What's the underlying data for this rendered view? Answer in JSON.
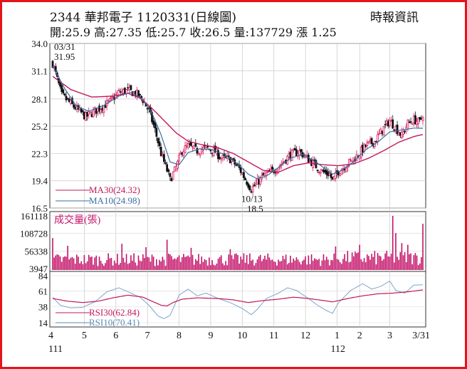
{
  "header": {
    "title": "2344  華邦電子 1120331(日線圖)",
    "source": "時報資訊",
    "quote": "開:25.9 高:27.35 低:25.7 收:26.5 量:137729 漲 1.25"
  },
  "chart_data": [
    {
      "type": "candlestick",
      "panel": "price",
      "y_ticks": [
        "34.0",
        "31.1",
        "28.1",
        "25.2",
        "22.3",
        "19.4",
        "16.5"
      ],
      "ylim": [
        16.5,
        34.0
      ],
      "grid": true,
      "annotations": [
        {
          "label": "03/31",
          "date_index": 0
        },
        {
          "label": "31.95",
          "value": 31.95,
          "date_index": 0
        },
        {
          "label": "10/13",
          "date_index": 132
        },
        {
          "label": "18.5",
          "value": 18.5,
          "date_index": 132
        }
      ],
      "legend": [
        {
          "label": "MA30(24.32)",
          "color": "#c2185b"
        },
        {
          "label": "MA10(24.98)",
          "color": "#3a6fa0"
        }
      ],
      "colors": {
        "up": "#d81b60",
        "down": "#111111",
        "ma30": "#c2185b",
        "ma10": "#3a6fa0"
      },
      "close_path": [
        [
          0,
          31.9
        ],
        [
          6,
          28.5
        ],
        [
          14,
          27.3
        ],
        [
          22,
          26.2
        ],
        [
          30,
          27.0
        ],
        [
          38,
          27.8
        ],
        [
          44,
          28.8
        ],
        [
          50,
          29.0
        ],
        [
          56,
          28.6
        ],
        [
          60,
          28.0
        ],
        [
          64,
          26.8
        ],
        [
          68,
          24.8
        ],
        [
          72,
          22.3
        ],
        [
          76,
          20.5
        ],
        [
          78,
          19.5
        ],
        [
          82,
          20.8
        ],
        [
          86,
          22.6
        ],
        [
          90,
          23.1
        ],
        [
          96,
          22.6
        ],
        [
          102,
          22.9
        ],
        [
          108,
          22.5
        ],
        [
          112,
          21.8
        ],
        [
          118,
          21.7
        ],
        [
          124,
          20.7
        ],
        [
          128,
          19.6
        ],
        [
          132,
          18.5
        ],
        [
          136,
          19.2
        ],
        [
          140,
          19.9
        ],
        [
          146,
          20.4
        ],
        [
          152,
          21.2
        ],
        [
          158,
          22.2
        ],
        [
          164,
          22.5
        ],
        [
          170,
          21.7
        ],
        [
          176,
          20.8
        ],
        [
          180,
          20.3
        ],
        [
          184,
          20.1
        ],
        [
          186,
          19.4
        ],
        [
          190,
          20.4
        ],
        [
          196,
          21.2
        ],
        [
          202,
          22.0
        ],
        [
          208,
          23.1
        ],
        [
          214,
          23.6
        ],
        [
          220,
          25.0
        ],
        [
          224,
          25.8
        ],
        [
          228,
          25.0
        ],
        [
          232,
          24.2
        ],
        [
          236,
          25.5
        ],
        [
          240,
          25.9
        ],
        [
          244,
          25.6
        ],
        [
          246,
          26.5
        ]
      ],
      "ma30_path": [
        [
          0,
          30.5
        ],
        [
          12,
          29.1
        ],
        [
          26,
          28.3
        ],
        [
          40,
          28.4
        ],
        [
          50,
          28.7
        ],
        [
          58,
          28.2
        ],
        [
          66,
          27.1
        ],
        [
          74,
          25.8
        ],
        [
          82,
          24.5
        ],
        [
          90,
          23.6
        ],
        [
          100,
          23.2
        ],
        [
          110,
          22.9
        ],
        [
          120,
          22.3
        ],
        [
          130,
          21.4
        ],
        [
          140,
          20.5
        ],
        [
          150,
          20.3
        ],
        [
          160,
          21.0
        ],
        [
          170,
          21.3
        ],
        [
          180,
          21.1
        ],
        [
          190,
          21.0
        ],
        [
          200,
          21.2
        ],
        [
          210,
          21.8
        ],
        [
          220,
          22.6
        ],
        [
          230,
          23.5
        ],
        [
          240,
          24.1
        ],
        [
          246,
          24.32
        ]
      ],
      "ma10_path": [
        [
          0,
          31.6
        ],
        [
          8,
          29.2
        ],
        [
          16,
          27.3
        ],
        [
          24,
          26.8
        ],
        [
          34,
          27.4
        ],
        [
          44,
          28.4
        ],
        [
          52,
          28.8
        ],
        [
          60,
          28.1
        ],
        [
          66,
          26.6
        ],
        [
          72,
          24.3
        ],
        [
          78,
          21.4
        ],
        [
          84,
          21.1
        ],
        [
          90,
          22.4
        ],
        [
          98,
          22.8
        ],
        [
          106,
          22.7
        ],
        [
          114,
          22.2
        ],
        [
          122,
          21.3
        ],
        [
          130,
          20.1
        ],
        [
          136,
          19.6
        ],
        [
          142,
          19.9
        ],
        [
          150,
          20.8
        ],
        [
          158,
          21.8
        ],
        [
          166,
          22.2
        ],
        [
          174,
          21.5
        ],
        [
          180,
          20.8
        ],
        [
          186,
          20.1
        ],
        [
          192,
          20.5
        ],
        [
          200,
          21.4
        ],
        [
          208,
          22.7
        ],
        [
          216,
          23.5
        ],
        [
          224,
          24.6
        ],
        [
          232,
          24.8
        ],
        [
          240,
          25.0
        ],
        [
          246,
          24.98
        ]
      ]
    },
    {
      "type": "bar",
      "panel": "volume",
      "title": "成交量(張)",
      "y_ticks": [
        "161118",
        "108728",
        "56338",
        "3947"
      ],
      "ylim": [
        3947,
        161118
      ],
      "spikes": [
        {
          "date_index": 0,
          "value": 95000
        },
        {
          "date_index": 10,
          "value": 72000
        },
        {
          "date_index": 46,
          "value": 78000
        },
        {
          "date_index": 62,
          "value": 68000
        },
        {
          "date_index": 76,
          "value": 90000
        },
        {
          "date_index": 92,
          "value": 66000
        },
        {
          "date_index": 118,
          "value": 62000
        },
        {
          "date_index": 188,
          "value": 70000
        },
        {
          "date_index": 204,
          "value": 75000
        },
        {
          "date_index": 226,
          "value": 161118
        },
        {
          "date_index": 228,
          "value": 110000
        },
        {
          "date_index": 232,
          "value": 80000
        },
        {
          "date_index": 236,
          "value": 75000
        },
        {
          "date_index": 246,
          "value": 137729
        }
      ]
    },
    {
      "type": "line",
      "panel": "rsi",
      "y_ticks": [
        "84",
        "61",
        "38",
        "14"
      ],
      "ylim": [
        14,
        84
      ],
      "legend": [
        {
          "label": "RSI30(62.84)",
          "color": "#c2185b"
        },
        {
          "label": "RSI10(70.41)",
          "color": "#5b8ab8"
        }
      ],
      "rsi30_path": [
        [
          0,
          50
        ],
        [
          10,
          46
        ],
        [
          20,
          44
        ],
        [
          30,
          46
        ],
        [
          40,
          51
        ],
        [
          50,
          55
        ],
        [
          60,
          52
        ],
        [
          66,
          46
        ],
        [
          72,
          40
        ],
        [
          76,
          39
        ],
        [
          80,
          44
        ],
        [
          86,
          49
        ],
        [
          96,
          51
        ],
        [
          110,
          50
        ],
        [
          120,
          48
        ],
        [
          130,
          44
        ],
        [
          140,
          47
        ],
        [
          150,
          49
        ],
        [
          160,
          52
        ],
        [
          170,
          50
        ],
        [
          180,
          47
        ],
        [
          186,
          45
        ],
        [
          196,
          50
        ],
        [
          206,
          54
        ],
        [
          216,
          57
        ],
        [
          226,
          58
        ],
        [
          236,
          60
        ],
        [
          246,
          62.84
        ]
      ],
      "rsi10_path": [
        [
          0,
          52
        ],
        [
          5,
          40
        ],
        [
          12,
          36
        ],
        [
          20,
          37
        ],
        [
          28,
          45
        ],
        [
          36,
          60
        ],
        [
          44,
          66
        ],
        [
          52,
          58
        ],
        [
          58,
          52
        ],
        [
          64,
          40
        ],
        [
          70,
          24
        ],
        [
          74,
          20
        ],
        [
          78,
          25
        ],
        [
          84,
          55
        ],
        [
          90,
          64
        ],
        [
          96,
          54
        ],
        [
          102,
          58
        ],
        [
          110,
          50
        ],
        [
          118,
          44
        ],
        [
          126,
          35
        ],
        [
          132,
          26
        ],
        [
          136,
          34
        ],
        [
          142,
          50
        ],
        [
          150,
          58
        ],
        [
          156,
          66
        ],
        [
          162,
          62
        ],
        [
          170,
          50
        ],
        [
          176,
          40
        ],
        [
          182,
          32
        ],
        [
          186,
          28
        ],
        [
          190,
          44
        ],
        [
          198,
          62
        ],
        [
          206,
          72
        ],
        [
          212,
          64
        ],
        [
          218,
          68
        ],
        [
          224,
          76
        ],
        [
          228,
          62
        ],
        [
          234,
          58
        ],
        [
          240,
          70
        ],
        [
          246,
          70.41
        ]
      ]
    }
  ],
  "x_axis": {
    "ticks": [
      {
        "label": "4",
        "date_index": 0
      },
      {
        "label": "5",
        "date_index": 21
      },
      {
        "label": "6",
        "date_index": 42
      },
      {
        "label": "7",
        "date_index": 63
      },
      {
        "label": "8",
        "date_index": 84
      },
      {
        "label": "9",
        "date_index": 105
      },
      {
        "label": "10",
        "date_index": 126
      },
      {
        "label": "11",
        "date_index": 147
      },
      {
        "label": "12",
        "date_index": 168
      },
      {
        "label": "1",
        "date_index": 189
      },
      {
        "label": "2",
        "date_index": 204
      },
      {
        "label": "3",
        "date_index": 224
      },
      {
        "label": "3/31",
        "date_index": 246
      }
    ],
    "years": [
      {
        "label": "111",
        "date_index": 0
      },
      {
        "label": "112",
        "date_index": 189
      }
    ]
  }
}
